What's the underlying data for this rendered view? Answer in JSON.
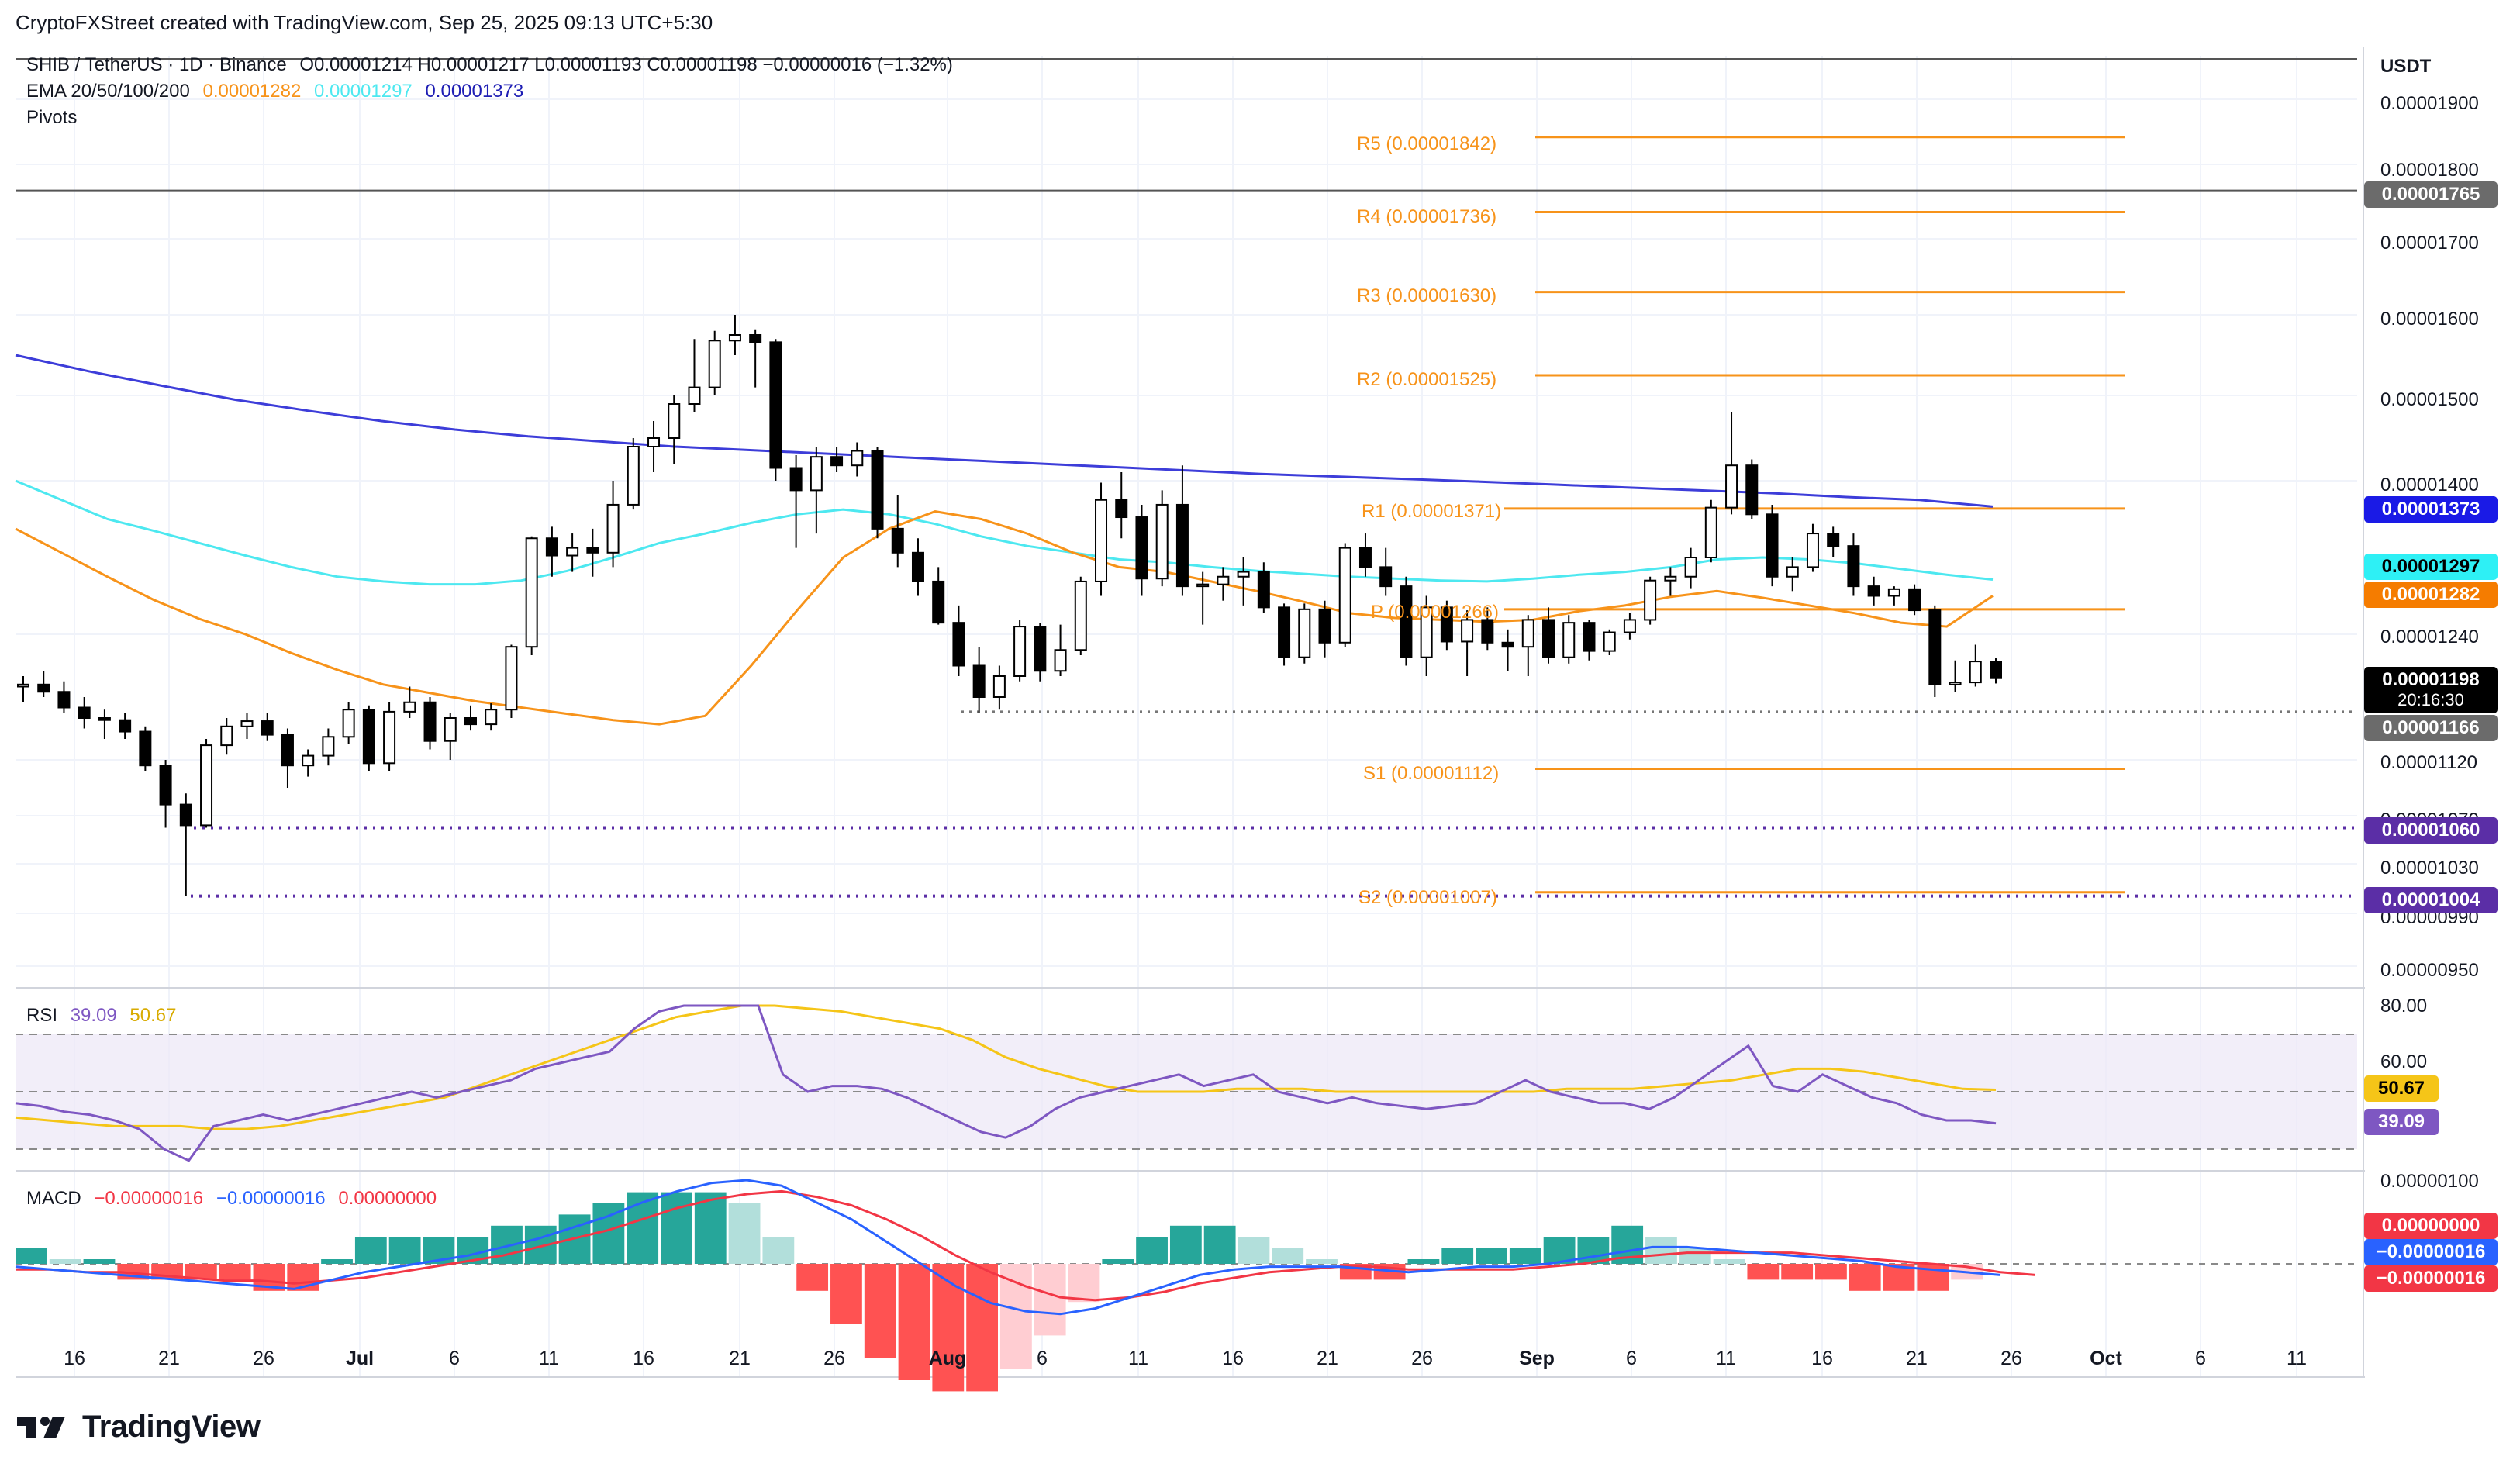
{
  "header": {
    "attribution": "CryptoFXStreet created with TradingView.com, Sep 25, 2025 09:13 UTC+5:30"
  },
  "legend": {
    "symbol": "SHIB / TetherUS · 1D · Binance",
    "ohlc": "O0.00001214  H0.00001217  L0.00001193  C0.00001198  −0.00000016 (−1.32%)",
    "ema_label": "EMA 20/50/100/200",
    "ema_values": [
      "0.00001282",
      "0.00001297",
      "0.00001373"
    ],
    "pivots_label": "Pivots",
    "rsi_label": "RSI",
    "rsi_values": [
      "39.09",
      "50.67"
    ],
    "macd_label": "MACD",
    "macd_values": [
      "−0.00000016",
      "−0.00000016",
      "0.00000000"
    ]
  },
  "axis": {
    "currency": "USDT",
    "price_ticks": [
      "0.00001900",
      "0.00001800",
      "0.00001700",
      "0.00001600",
      "0.00001500",
      "0.00001400",
      "0.00001240",
      "0.00001120",
      "0.00001070",
      "0.00001030",
      "0.00000990",
      "0.00000950"
    ],
    "rsi_ticks": [
      "80.00",
      "60.00"
    ],
    "macd_tick": "0.00000100",
    "x_ticks": [
      "16",
      "21",
      "26",
      "Jul",
      "6",
      "11",
      "16",
      "21",
      "26",
      "Aug",
      "6",
      "11",
      "16",
      "21",
      "26",
      "Sep",
      "6",
      "11",
      "16",
      "21",
      "26",
      "Oct",
      "6",
      "11"
    ]
  },
  "badges": {
    "b1765": "0.00001765",
    "b1373": "0.00001373",
    "b1297": "0.00001297",
    "b1282": "0.00001282",
    "b_price": "0.00001198",
    "b_timer": "20:16:30",
    "b1166": "0.00001166",
    "b1060": "0.00001060",
    "b1004": "0.00001004",
    "rsi_ma": "50.67",
    "rsi": "39.09",
    "macd_hist": "0.00000000",
    "macd_line": "−0.00000016",
    "macd_signal": "−0.00000016"
  },
  "pivots": {
    "r5": "R5 (0.00001842)",
    "r4": "R4 (0.00001736)",
    "r3": "R3 (0.00001630)",
    "r2": "R2 (0.00001525)",
    "r1": "R1 (0.00001371)",
    "p": "P (0.00001266)",
    "s1": "S1 (0.00001112)",
    "s2": "S2 (0.00001007)"
  },
  "brand": "TradingView",
  "colors": {
    "up": "#ffffff",
    "down": "#000000",
    "ema50": "#f7931a",
    "ema100": "#4de8f0",
    "ema200": "#3d3dd9",
    "pivot": "#f7931a",
    "rsi": "#7e57c2",
    "rsi_ma": "#f5c518",
    "macd_line": "#2962ff",
    "macd_signal": "#f23645",
    "hist_up_strong": "#26a69a",
    "hist_up_weak": "#b2dfdb",
    "hist_down_strong": "#ff5252",
    "hist_down_weak": "#ffcdd2"
  },
  "chart_data": {
    "type": "candlestick",
    "title": "SHIB / TetherUS · 1D · Binance",
    "candles": [
      [
        1.19e-05,
        1.2e-05,
        1.175e-05,
        1.192e-05
      ],
      [
        1.192e-05,
        1.205e-05,
        1.18e-05,
        1.185e-05
      ],
      [
        1.185e-05,
        1.195e-05,
        1.165e-05,
        1.17e-05
      ],
      [
        1.17e-05,
        1.18e-05,
        1.15e-05,
        1.16e-05
      ],
      [
        1.16e-05,
        1.168e-05,
        1.14e-05,
        1.158e-05
      ],
      [
        1.158e-05,
        1.165e-05,
        1.14e-05,
        1.147e-05
      ],
      [
        1.147e-05,
        1.152e-05,
        1.11e-05,
        1.115e-05
      ],
      [
        1.115e-05,
        1.12e-05,
        1.06e-05,
        1.08e-05
      ],
      [
        1.08e-05,
        1.09e-05,
        1.004e-05,
        1.062e-05
      ],
      [
        1.062e-05,
        1.14e-05,
        1.06e-05,
        1.134e-05
      ],
      [
        1.134e-05,
        1.16e-05,
        1.125e-05,
        1.152e-05
      ],
      [
        1.152e-05,
        1.165e-05,
        1.14e-05,
        1.157e-05
      ],
      [
        1.157e-05,
        1.165e-05,
        1.138e-05,
        1.144e-05
      ],
      [
        1.144e-05,
        1.15e-05,
        1.095e-05,
        1.115e-05
      ],
      [
        1.115e-05,
        1.13e-05,
        1.105e-05,
        1.124e-05
      ],
      [
        1.124e-05,
        1.15e-05,
        1.115e-05,
        1.142e-05
      ],
      [
        1.142e-05,
        1.175e-05,
        1.135e-05,
        1.168e-05
      ],
      [
        1.168e-05,
        1.172e-05,
        1.11e-05,
        1.117e-05
      ],
      [
        1.117e-05,
        1.175e-05,
        1.11e-05,
        1.166e-05
      ],
      [
        1.166e-05,
        1.19e-05,
        1.16e-05,
        1.175e-05
      ],
      [
        1.175e-05,
        1.18e-05,
        1.13e-05,
        1.138e-05
      ],
      [
        1.138e-05,
        1.165e-05,
        1.12e-05,
        1.16e-05
      ],
      [
        1.16e-05,
        1.172e-05,
        1.148e-05,
        1.154e-05
      ],
      [
        1.154e-05,
        1.174e-05,
        1.148e-05,
        1.168e-05
      ],
      [
        1.168e-05,
        1.23e-05,
        1.16e-05,
        1.228e-05
      ],
      [
        1.228e-05,
        1.342e-05,
        1.22e-05,
        1.34e-05
      ],
      [
        1.34e-05,
        1.352e-05,
        1.3e-05,
        1.322e-05
      ],
      [
        1.322e-05,
        1.345e-05,
        1.305e-05,
        1.33e-05
      ],
      [
        1.33e-05,
        1.35e-05,
        1.3e-05,
        1.325e-05
      ],
      [
        1.325e-05,
        1.4e-05,
        1.31e-05,
        1.375e-05
      ],
      [
        1.375e-05,
        1.45e-05,
        1.37e-05,
        1.44e-05
      ],
      [
        1.44e-05,
        1.47e-05,
        1.41e-05,
        1.45e-05
      ],
      [
        1.45e-05,
        1.5e-05,
        1.42e-05,
        1.49e-05
      ],
      [
        1.49e-05,
        1.57e-05,
        1.48e-05,
        1.51e-05
      ],
      [
        1.51e-05,
        1.58e-05,
        1.5e-05,
        1.568e-05
      ],
      [
        1.568e-05,
        1.6e-05,
        1.55e-05,
        1.575e-05
      ],
      [
        1.575e-05,
        1.582e-05,
        1.51e-05,
        1.566e-05
      ],
      [
        1.566e-05,
        1.57e-05,
        1.4e-05,
        1.415e-05
      ],
      [
        1.415e-05,
        1.43e-05,
        1.33e-05,
        1.39e-05
      ],
      [
        1.39e-05,
        1.44e-05,
        1.345e-05,
        1.428e-05
      ],
      [
        1.428e-05,
        1.44e-05,
        1.41e-05,
        1.418e-05
      ],
      [
        1.418e-05,
        1.445e-05,
        1.405e-05,
        1.435e-05
      ],
      [
        1.435e-05,
        1.44e-05,
        1.34e-05,
        1.35e-05
      ],
      [
        1.35e-05,
        1.385e-05,
        1.31e-05,
        1.325e-05
      ],
      [
        1.325e-05,
        1.34e-05,
        1.28e-05,
        1.295e-05
      ],
      [
        1.295e-05,
        1.31e-05,
        1.25e-05,
        1.252e-05
      ],
      [
        1.252e-05,
        1.27e-05,
        1.2e-05,
        1.21e-05
      ],
      [
        1.21e-05,
        1.228e-05,
        1.165e-05,
        1.18e-05
      ],
      [
        1.18e-05,
        1.21e-05,
        1.168e-05,
        1.2e-05
      ],
      [
        1.2e-05,
        1.255e-05,
        1.195e-05,
        1.248e-05
      ],
      [
        1.248e-05,
        1.252e-05,
        1.195e-05,
        1.205e-05
      ],
      [
        1.205e-05,
        1.25e-05,
        1.2e-05,
        1.225e-05
      ],
      [
        1.225e-05,
        1.3e-05,
        1.22e-05,
        1.295e-05
      ],
      [
        1.295e-05,
        1.398e-05,
        1.28e-05,
        1.38e-05
      ],
      [
        1.38e-05,
        1.41e-05,
        1.34e-05,
        1.362e-05
      ],
      [
        1.362e-05,
        1.375e-05,
        1.28e-05,
        1.298e-05
      ],
      [
        1.298e-05,
        1.39e-05,
        1.29e-05,
        1.375e-05
      ],
      [
        1.375e-05,
        1.418e-05,
        1.28e-05,
        1.29e-05
      ],
      [
        1.29e-05,
        1.305e-05,
        1.25e-05,
        1.292e-05
      ],
      [
        1.292e-05,
        1.31e-05,
        1.275e-05,
        1.3e-05
      ],
      [
        1.3e-05,
        1.32e-05,
        1.27e-05,
        1.305e-05
      ],
      [
        1.305e-05,
        1.315e-05,
        1.262e-05,
        1.268e-05
      ],
      [
        1.268e-05,
        1.272e-05,
        1.21e-05,
        1.218e-05
      ],
      [
        1.218e-05,
        1.272e-05,
        1.212e-05,
        1.266e-05
      ],
      [
        1.266e-05,
        1.275e-05,
        1.218e-05,
        1.232e-05
      ],
      [
        1.232e-05,
        1.335e-05,
        1.228e-05,
        1.33e-05
      ],
      [
        1.33e-05,
        1.345e-05,
        1.3e-05,
        1.31e-05
      ],
      [
        1.31e-05,
        1.33e-05,
        1.28e-05,
        1.29e-05
      ],
      [
        1.29e-05,
        1.3e-05,
        1.21e-05,
        1.218e-05
      ],
      [
        1.218e-05,
        1.28e-05,
        1.2e-05,
        1.268e-05
      ],
      [
        1.268e-05,
        1.275e-05,
        1.225e-05,
        1.233e-05
      ],
      [
        1.233e-05,
        1.265e-05,
        1.2e-05,
        1.255e-05
      ],
      [
        1.255e-05,
        1.268e-05,
        1.225e-05,
        1.232e-05
      ],
      [
        1.232e-05,
        1.245e-05,
        1.205e-05,
        1.228e-05
      ],
      [
        1.228e-05,
        1.26e-05,
        1.2e-05,
        1.255e-05
      ],
      [
        1.255e-05,
        1.268e-05,
        1.212e-05,
        1.218e-05
      ],
      [
        1.218e-05,
        1.26e-05,
        1.212e-05,
        1.252e-05
      ],
      [
        1.252e-05,
        1.255e-05,
        1.215e-05,
        1.224e-05
      ],
      [
        1.224e-05,
        1.245e-05,
        1.22e-05,
        1.242e-05
      ],
      [
        1.242e-05,
        1.262e-05,
        1.235e-05,
        1.255e-05
      ],
      [
        1.255e-05,
        1.3e-05,
        1.25e-05,
        1.296e-05
      ],
      [
        1.296e-05,
        1.31e-05,
        1.28e-05,
        1.3e-05
      ],
      [
        1.3e-05,
        1.33e-05,
        1.288e-05,
        1.32e-05
      ],
      [
        1.32e-05,
        1.38e-05,
        1.315e-05,
        1.372e-05
      ],
      [
        1.372e-05,
        1.48e-05,
        1.365e-05,
        1.418e-05
      ],
      [
        1.418e-05,
        1.425e-05,
        1.36e-05,
        1.365e-05
      ],
      [
        1.365e-05,
        1.375e-05,
        1.29e-05,
        1.3e-05
      ],
      [
        1.3e-05,
        1.32e-05,
        1.285e-05,
        1.31e-05
      ],
      [
        1.31e-05,
        1.355e-05,
        1.305e-05,
        1.345e-05
      ],
      [
        1.345e-05,
        1.352e-05,
        1.32e-05,
        1.332e-05
      ],
      [
        1.332e-05,
        1.345e-05,
        1.28e-05,
        1.29e-05
      ],
      [
        1.29e-05,
        1.3e-05,
        1.27e-05,
        1.28e-05
      ],
      [
        1.28e-05,
        1.29e-05,
        1.27e-05,
        1.287e-05
      ],
      [
        1.287e-05,
        1.292e-05,
        1.26e-05,
        1.265e-05
      ],
      [
        1.265e-05,
        1.27e-05,
        1.18e-05,
        1.192e-05
      ],
      [
        1.192e-05,
        1.215e-05,
        1.185e-05,
        1.194e-05
      ],
      [
        1.194e-05,
        1.23e-05,
        1.19e-05,
        1.214e-05
      ],
      [
        1.214e-05,
        1.217e-05,
        1.193e-05,
        1.198e-05
      ]
    ],
    "ema50": [
      1.35e-05,
      1.325e-05,
      1.3e-05,
      1.276e-05,
      1.256e-05,
      1.24e-05,
      1.222e-05,
      1.206e-05,
      1.192e-05,
      1.184e-05,
      1.176e-05,
      1.17e-05,
      1.164e-05,
      1.158e-05,
      1.154e-05,
      1.162e-05,
      1.21e-05,
      1.265e-05,
      1.32e-05,
      1.35e-05,
      1.368e-05,
      1.36e-05,
      1.345e-05,
      1.325e-05,
      1.31e-05,
      1.305e-05,
      1.295e-05,
      1.285e-05,
      1.274e-05,
      1.262e-05,
      1.257e-05,
      1.255e-05,
      1.253e-05,
      1.255e-05,
      1.264e-05,
      1.27e-05,
      1.279e-05,
      1.285e-05,
      1.278e-05,
      1.27e-05,
      1.262e-05,
      1.252e-05,
      1.248e-05,
      1.28e-05
    ],
    "ema100": [
      1.4e-05,
      1.38e-05,
      1.36e-05,
      1.348e-05,
      1.335e-05,
      1.322e-05,
      1.31e-05,
      1.3e-05,
      1.295e-05,
      1.292e-05,
      1.292e-05,
      1.296e-05,
      1.306e-05,
      1.32e-05,
      1.335e-05,
      1.345e-05,
      1.356e-05,
      1.365e-05,
      1.37e-05,
      1.365e-05,
      1.355e-05,
      1.342e-05,
      1.332e-05,
      1.325e-05,
      1.318e-05,
      1.315e-05,
      1.31e-05,
      1.306e-05,
      1.303e-05,
      1.3e-05,
      1.298e-05,
      1.296e-05,
      1.295e-05,
      1.298e-05,
      1.302e-05,
      1.305e-05,
      1.31e-05,
      1.318e-05,
      1.32e-05,
      1.318e-05,
      1.314e-05,
      1.308e-05,
      1.302e-05,
      1.297e-05
    ],
    "ema200": [
      1.55e-05,
      1.53e-05,
      1.512e-05,
      1.495e-05,
      1.482e-05,
      1.47e-05,
      1.46e-05,
      1.452e-05,
      1.446e-05,
      1.44e-05,
      1.436e-05,
      1.432e-05,
      1.428e-05,
      1.424e-05,
      1.42e-05,
      1.416e-05,
      1.412e-05,
      1.408e-05,
      1.405e-05,
      1.402e-05,
      1.399e-05,
      1.396e-05,
      1.393e-05,
      1.39e-05,
      1.387e-05,
      1.383e-05,
      1.38e-05,
      1.373e-05
    ],
    "support_lines": [
      1.166e-05,
      1.06e-05,
      1.004e-05
    ],
    "resistance_line": 1.765e-05,
    "rsi": [
      46,
      45,
      43,
      42,
      40,
      37,
      30,
      26,
      38,
      40,
      42,
      40,
      42,
      44,
      46,
      48,
      50,
      48,
      50,
      52,
      54,
      58,
      60,
      62,
      64,
      72,
      78,
      80,
      82,
      83,
      84,
      56,
      50,
      52,
      52,
      51,
      48,
      44,
      40,
      36,
      34,
      38,
      44,
      48,
      50,
      52,
      54,
      56,
      52,
      54,
      56,
      50,
      48,
      46,
      48,
      46,
      45,
      44,
      45,
      46,
      50,
      54,
      50,
      48,
      46,
      46,
      44,
      48,
      54,
      60,
      66,
      52,
      50,
      56,
      52,
      48,
      46,
      42,
      40,
      40,
      39
    ],
    "rsi_ma": [
      41,
      40,
      39,
      38,
      38,
      38,
      37,
      37,
      38,
      40,
      42,
      44,
      46,
      48,
      52,
      56,
      60,
      64,
      68,
      72,
      76,
      78,
      80,
      80,
      79,
      78,
      76,
      74,
      72,
      68,
      62,
      58,
      55,
      52,
      50,
      50,
      50,
      51,
      51,
      51,
      50,
      50,
      50,
      50,
      50,
      50,
      50,
      51,
      51,
      51,
      52,
      53,
      54,
      56,
      58,
      58,
      57,
      55,
      53,
      51,
      50.67
    ],
    "macd_line": [
      -1,
      -2,
      -3,
      -4,
      -5,
      -6,
      -7,
      -8,
      -9,
      -6,
      -3,
      -1,
      1,
      3,
      6,
      9,
      13,
      17,
      22,
      26,
      29,
      30,
      28,
      22,
      16,
      8,
      0,
      -8,
      -14,
      -17,
      -18,
      -16,
      -12,
      -8,
      -4,
      -2,
      -1,
      -1,
      -1,
      -2,
      -3,
      -2,
      -1,
      -1,
      0,
      2,
      4,
      6,
      6,
      5,
      4,
      3,
      2,
      1,
      -1,
      -2,
      -3,
      -4
    ],
    "macd_signal": [
      -2,
      -2,
      -3,
      -3,
      -4,
      -5,
      -6,
      -6,
      -7,
      -6,
      -5,
      -3,
      -1,
      1,
      3,
      6,
      9,
      12,
      16,
      20,
      23,
      25,
      26,
      24,
      21,
      16,
      10,
      3,
      -3,
      -8,
      -12,
      -13,
      -12,
      -10,
      -7,
      -5,
      -3,
      -2,
      -1,
      -1,
      -2,
      -2,
      -2,
      -2,
      -1,
      0,
      2,
      3,
      4,
      4,
      4,
      4,
      3,
      2,
      1,
      0,
      -1,
      -3,
      -4
    ]
  }
}
